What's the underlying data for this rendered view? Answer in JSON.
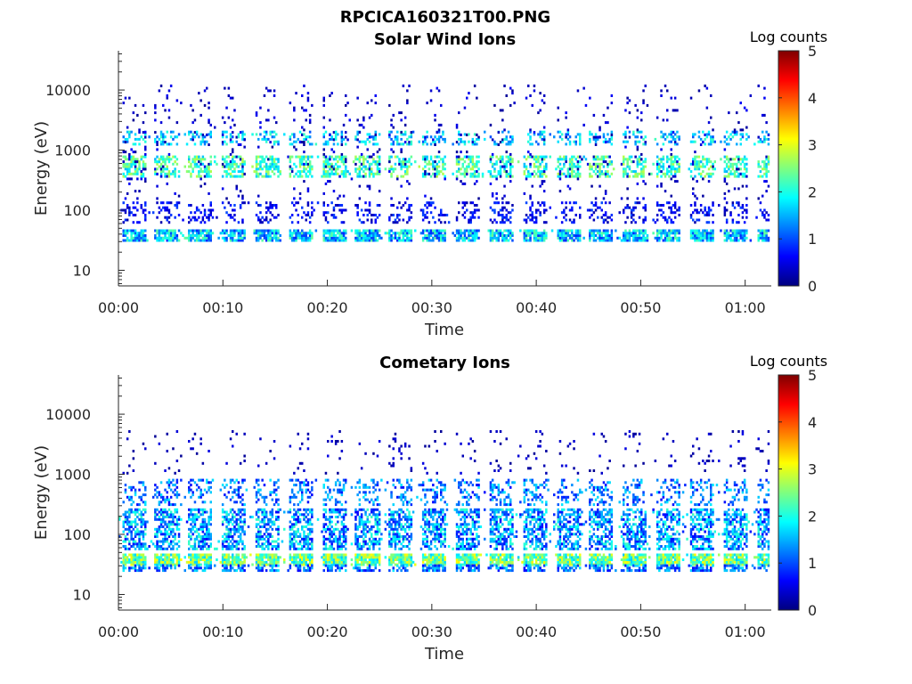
{
  "figure_title": "RPCICA160321T00.PNG",
  "colormap": [
    "#00007f",
    "#0000ff",
    "#007fff",
    "#00ffff",
    "#7fff7f",
    "#ffff00",
    "#ff7f00",
    "#ff0000",
    "#7f0000"
  ],
  "chart_data": [
    {
      "type": "heatmap",
      "title": "Solar Wind Ions",
      "xlabel": "Time",
      "ylabel": "Energy (eV)",
      "x_ticks": [
        "00:00",
        "00:10",
        "00:20",
        "00:30",
        "00:40",
        "00:50",
        "01:00"
      ],
      "x_tick_minutes": [
        0,
        10,
        20,
        30,
        40,
        50,
        60
      ],
      "xlim_minutes": [
        0,
        62.5
      ],
      "y_scale": "log",
      "y_ticks": [
        "10",
        "100",
        "1000",
        "10000"
      ],
      "y_tick_values": [
        10,
        100,
        1000,
        10000
      ],
      "ylim": [
        5.5,
        45000
      ],
      "colorbar": {
        "label": "Log counts",
        "ticks": [
          "0",
          "1",
          "2",
          "3",
          "4",
          "5"
        ],
        "range": [
          0,
          5
        ]
      },
      "grid": false,
      "sweep_period_minutes": 3.2,
      "sweep_start_minutes": 0.2,
      "bands": [
        {
          "energy_range_eV": [
            30,
            45
          ],
          "level": [
            0.8,
            2.4
          ],
          "density": 0.85
        },
        {
          "energy_range_eV": [
            60,
            130
          ],
          "level": [
            0.2,
            1.0
          ],
          "density": 0.28
        },
        {
          "energy_range_eV": [
            350,
            800
          ],
          "level": [
            1.5,
            2.8
          ],
          "density": 0.55
        },
        {
          "energy_range_eV": [
            1200,
            2000
          ],
          "level": [
            1.0,
            2.2
          ],
          "density": 0.3
        },
        {
          "energy_range_eV": [
            150,
            12000
          ],
          "level": [
            0.1,
            0.6
          ],
          "density": 0.05
        }
      ]
    },
    {
      "type": "heatmap",
      "title": "Cometary Ions",
      "xlabel": "Time",
      "ylabel": "Energy (eV)",
      "x_ticks": [
        "00:00",
        "00:10",
        "00:20",
        "00:30",
        "00:40",
        "00:50",
        "01:00"
      ],
      "x_tick_minutes": [
        0,
        10,
        20,
        30,
        40,
        50,
        60
      ],
      "xlim_minutes": [
        0,
        62.5
      ],
      "y_scale": "log",
      "y_ticks": [
        "10",
        "100",
        "1000",
        "10000"
      ],
      "y_tick_values": [
        10,
        100,
        1000,
        10000
      ],
      "ylim": [
        5.5,
        45000
      ],
      "colorbar": {
        "label": "Log counts",
        "ticks": [
          "0",
          "1",
          "2",
          "3",
          "4",
          "5"
        ],
        "range": [
          0,
          5
        ]
      },
      "grid": false,
      "sweep_period_minutes": 3.2,
      "sweep_start_minutes": 0.2,
      "bands": [
        {
          "energy_range_eV": [
            30,
            45
          ],
          "level": [
            1.6,
            3.2
          ],
          "density": 0.92
        },
        {
          "energy_range_eV": [
            24,
            30
          ],
          "level": [
            0.6,
            1.8
          ],
          "density": 0.6
        },
        {
          "energy_range_eV": [
            55,
            250
          ],
          "level": [
            0.6,
            2.2
          ],
          "density": 0.6
        },
        {
          "energy_range_eV": [
            300,
            800
          ],
          "level": [
            0.6,
            1.8
          ],
          "density": 0.3
        },
        {
          "energy_range_eV": [
            1000,
            5000
          ],
          "level": [
            0.1,
            0.5
          ],
          "density": 0.05
        }
      ]
    }
  ]
}
